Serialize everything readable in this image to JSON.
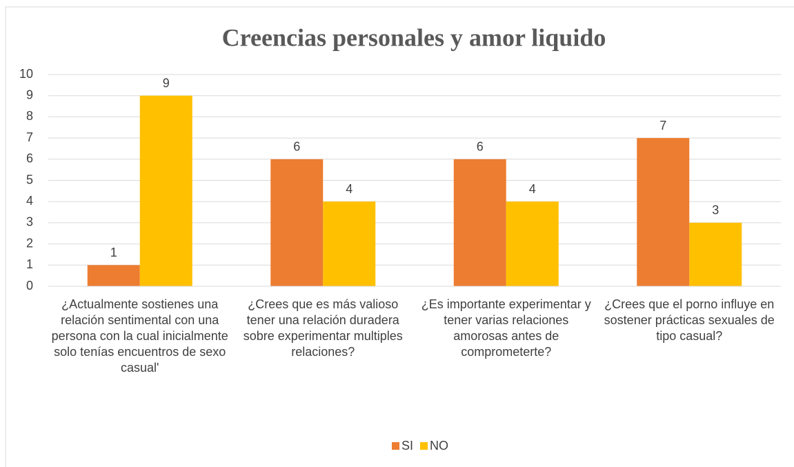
{
  "chart_data": {
    "type": "bar",
    "title": "Creencias personales y amor liquido",
    "categories": [
      "¿Actualmente sostienes una relación sentimental con una persona con la cual inicialmente solo tenías encuentros de sexo casual'",
      "¿Crees que es más valioso tener una relación duradera sobre experimentar multiples relaciones?",
      "¿Es importante experimentar y tener varias relaciones amorosas antes de comprometerte?",
      "¿Crees que el porno influye en sostener prácticas sexuales de tipo casual?"
    ],
    "series": [
      {
        "name": "SI",
        "color": "#ed7d31",
        "values": [
          1,
          6,
          6,
          7
        ]
      },
      {
        "name": "NO",
        "color": "#ffc000",
        "values": [
          9,
          4,
          4,
          3
        ]
      }
    ],
    "ylim": [
      0,
      10
    ],
    "yticks": [
      0,
      1,
      2,
      3,
      4,
      5,
      6,
      7,
      8,
      9,
      10
    ],
    "grid": true,
    "legend": "bottom"
  }
}
